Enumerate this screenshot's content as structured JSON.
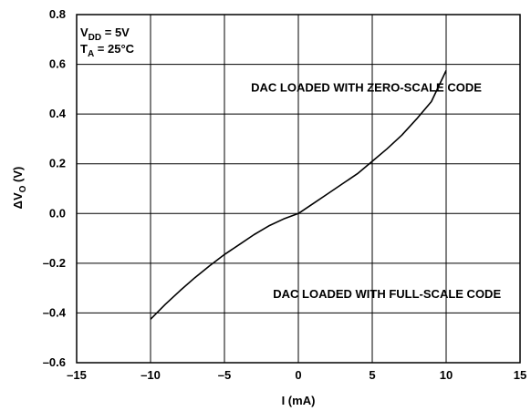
{
  "chart_data": {
    "type": "line",
    "title": "",
    "xlabel": "I (mA)",
    "ylabel": {
      "base": "ΔV",
      "sub": "O",
      "suffix": " (V)"
    },
    "xlim": [
      -15,
      15
    ],
    "ylim": [
      -0.6,
      0.8
    ],
    "x_ticks": [
      -15,
      -10,
      -5,
      0,
      5,
      10,
      15
    ],
    "x_tick_labels": [
      "–15",
      "–10",
      "–5",
      "0",
      "5",
      "10",
      "15"
    ],
    "y_ticks": [
      -0.6,
      -0.4,
      -0.2,
      0.0,
      0.2,
      0.4,
      0.6,
      0.8
    ],
    "y_tick_labels": [
      "–0.6",
      "–0.4",
      "–0.2",
      "0.0",
      "0.2",
      "0.4",
      "0.6",
      "0.8"
    ],
    "grid": true,
    "conditions": [
      {
        "base": "V",
        "sub": "DD",
        "rest": " = 5V"
      },
      {
        "base": "T",
        "sub": "A",
        "rest": " = 25°C"
      }
    ],
    "annotations": [
      {
        "text": "DAC LOADED WITH ZERO-SCALE CODE",
        "x": 4.6,
        "y": 0.49
      },
      {
        "text": "DAC LOADED WITH FULL-SCALE CODE",
        "x": 6.0,
        "y": -0.34
      }
    ],
    "series": [
      {
        "color": "#000000",
        "x": [
          -10,
          -9,
          -8,
          -7,
          -6,
          -5,
          -4,
          -3,
          -2,
          -1,
          0,
          1,
          2,
          3,
          4,
          5,
          6,
          7,
          8,
          9,
          10
        ],
        "y": [
          -0.425,
          -0.365,
          -0.31,
          -0.258,
          -0.21,
          -0.165,
          -0.125,
          -0.085,
          -0.05,
          -0.022,
          0.0,
          0.04,
          0.08,
          0.12,
          0.16,
          0.21,
          0.26,
          0.315,
          0.38,
          0.45,
          0.575
        ]
      }
    ]
  }
}
